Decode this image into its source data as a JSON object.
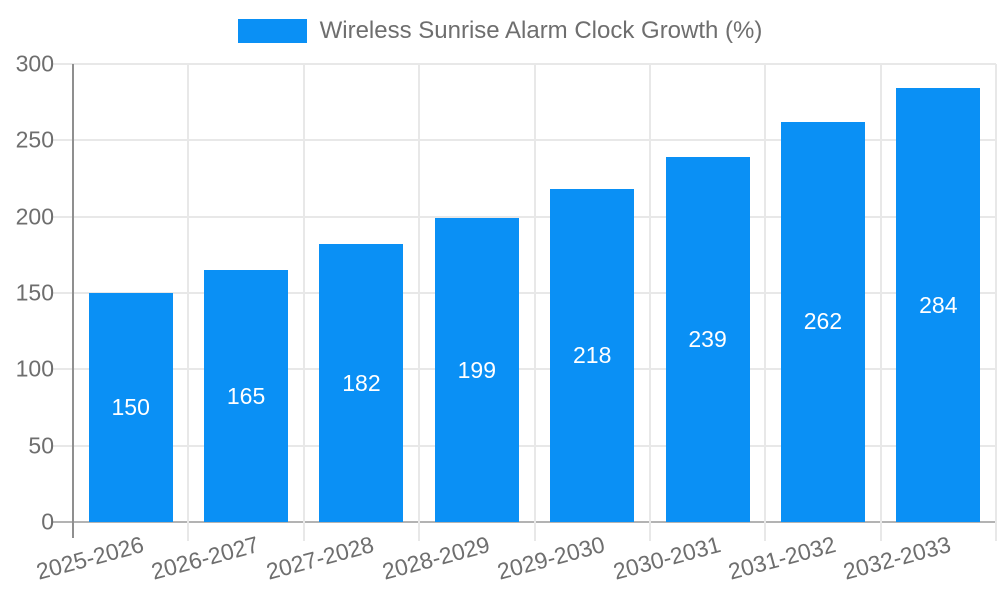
{
  "legend": {
    "label": "Wireless Sunrise Alarm Clock Growth (%)"
  },
  "chart_data": {
    "type": "bar",
    "title": "Wireless Sunrise Alarm Clock Growth (%)",
    "series_name": "Wireless Sunrise Alarm Clock Growth (%)",
    "categories": [
      "2025-2026",
      "2026-2027",
      "2027-2028",
      "2028-2029",
      "2029-2030",
      "2030-2031",
      "2031-2032",
      "2032-2033"
    ],
    "values": [
      150,
      165,
      182,
      199,
      218,
      239,
      262,
      284
    ],
    "value_labels": [
      "150",
      "165",
      "182",
      "199",
      "218",
      "239",
      "262",
      "284"
    ],
    "xlabel": "",
    "ylabel": "",
    "ylim": [
      0,
      300
    ],
    "yticks": [
      0,
      50,
      100,
      150,
      200,
      250,
      300
    ],
    "grid": true,
    "legend_position": "top-center",
    "x_label_rotation_deg": -15,
    "colors": {
      "bar": "#0a90f5",
      "value_label": "#ffffff",
      "axis_text": "#6e6e6e",
      "gridline": "#e8e8e8",
      "zero_line": "#b3b3b3",
      "axis_line": "#8f8f8f",
      "background": "#ffffff"
    }
  }
}
